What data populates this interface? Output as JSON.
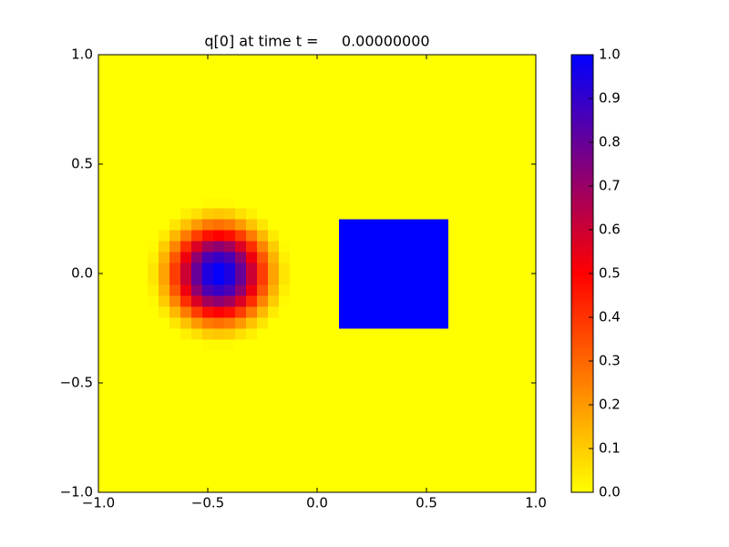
{
  "chart_data": {
    "type": "heatmap",
    "title": "q[0] at time t =     0.00000000",
    "x": [
      -1,
      -0.825,
      -0.775,
      -0.725,
      -0.675,
      -0.625,
      -0.575,
      -0.525,
      -0.475,
      -0.425,
      -0.375,
      -0.325,
      -0.275,
      -0.225,
      -0.175,
      -0.125,
      -0.075,
      0.1,
      0.6,
      1
    ],
    "y": [
      -1,
      -0.35,
      -0.3,
      -0.25,
      -0.2,
      -0.15,
      -0.1,
      -0.05,
      0,
      0.05,
      0.1,
      0.15,
      0.2,
      0.25,
      0.3,
      0.35,
      1
    ],
    "z": [
      [
        0,
        0,
        0,
        0,
        0,
        0,
        0,
        0,
        0,
        0,
        0,
        0,
        0,
        0,
        0,
        0,
        0,
        0,
        0
      ],
      [
        0,
        0,
        0,
        0,
        0,
        0,
        0,
        0.01,
        0.01,
        0.01,
        0,
        0,
        0,
        0,
        0,
        0,
        0,
        0,
        0
      ],
      [
        0,
        0,
        0,
        0,
        0,
        0.03,
        0.06,
        0.1,
        0.11,
        0.1,
        0.06,
        0.03,
        0,
        0,
        0,
        0,
        0,
        0,
        0
      ],
      [
        0,
        0,
        0,
        0,
        0.05,
        0.12,
        0.2,
        0.26,
        0.28,
        0.26,
        0.2,
        0.12,
        0.05,
        0,
        0,
        0,
        0,
        1,
        0
      ],
      [
        0,
        0,
        0,
        0.04,
        0.14,
        0.26,
        0.38,
        0.47,
        0.5,
        0.47,
        0.38,
        0.26,
        0.14,
        0.04,
        0,
        0,
        0,
        1,
        0
      ],
      [
        0,
        0,
        0.01,
        0.1,
        0.24,
        0.41,
        0.57,
        0.68,
        0.72,
        0.68,
        0.57,
        0.41,
        0.24,
        0.1,
        0.01,
        0,
        0,
        1,
        0
      ],
      [
        0,
        0,
        0.03,
        0.15,
        0.33,
        0.53,
        0.72,
        0.85,
        0.89,
        0.85,
        0.72,
        0.53,
        0.33,
        0.15,
        0.03,
        0,
        0,
        1,
        0
      ],
      [
        0,
        0,
        0.05,
        0.18,
        0.38,
        0.6,
        0.8,
        0.94,
        0.99,
        0.94,
        0.8,
        0.6,
        0.38,
        0.18,
        0.05,
        0,
        0,
        1,
        0
      ],
      [
        0,
        0,
        0.05,
        0.18,
        0.38,
        0.6,
        0.8,
        0.94,
        0.99,
        0.94,
        0.8,
        0.6,
        0.38,
        0.18,
        0.05,
        0,
        0,
        1,
        0
      ],
      [
        0,
        0,
        0.03,
        0.15,
        0.33,
        0.53,
        0.72,
        0.85,
        0.89,
        0.85,
        0.72,
        0.53,
        0.33,
        0.15,
        0.03,
        0,
        0,
        1,
        0
      ],
      [
        0,
        0,
        0.01,
        0.1,
        0.24,
        0.41,
        0.57,
        0.68,
        0.72,
        0.68,
        0.57,
        0.41,
        0.24,
        0.1,
        0.01,
        0,
        0,
        1,
        0
      ],
      [
        0,
        0,
        0,
        0.04,
        0.14,
        0.26,
        0.38,
        0.47,
        0.5,
        0.47,
        0.38,
        0.26,
        0.14,
        0.04,
        0,
        0,
        0,
        1,
        0
      ],
      [
        0,
        0,
        0,
        0,
        0.05,
        0.12,
        0.2,
        0.26,
        0.28,
        0.26,
        0.2,
        0.12,
        0.05,
        0,
        0,
        0,
        0,
        1,
        0
      ],
      [
        0,
        0,
        0,
        0,
        0,
        0.03,
        0.06,
        0.1,
        0.11,
        0.1,
        0.06,
        0.03,
        0,
        0,
        0,
        0,
        0,
        0,
        0
      ],
      [
        0,
        0,
        0,
        0,
        0,
        0,
        0,
        0.01,
        0.01,
        0.01,
        0,
        0,
        0,
        0,
        0,
        0,
        0,
        0,
        0
      ],
      [
        0,
        0,
        0,
        0,
        0,
        0,
        0,
        0,
        0,
        0,
        0,
        0,
        0,
        0,
        0,
        0,
        0,
        0,
        0
      ]
    ],
    "colormap": [
      "#ffff00",
      "#ff0000",
      "#0000ff"
    ],
    "zlim": [
      0,
      1
    ],
    "xlim": [
      -1,
      1
    ],
    "ylim": [
      -1,
      1
    ],
    "xticks": [
      {
        "value": -1,
        "label": "−1.0"
      },
      {
        "value": -0.5,
        "label": "−0.5"
      },
      {
        "value": 0,
        "label": "0.0"
      },
      {
        "value": 0.5,
        "label": "0.5"
      },
      {
        "value": 1,
        "label": "1.0"
      }
    ],
    "yticks": [
      {
        "value": -1,
        "label": "−1.0"
      },
      {
        "value": -0.5,
        "label": "−0.5"
      },
      {
        "value": 0,
        "label": "0.0"
      },
      {
        "value": 0.5,
        "label": "0.5"
      },
      {
        "value": 1,
        "label": "1.0"
      }
    ],
    "zticks": [
      {
        "value": 0,
        "label": "0.0"
      },
      {
        "value": 0.1,
        "label": "0.1"
      },
      {
        "value": 0.2,
        "label": "0.2"
      },
      {
        "value": 0.3,
        "label": "0.3"
      },
      {
        "value": 0.4,
        "label": "0.4"
      },
      {
        "value": 0.5,
        "label": "0.5"
      },
      {
        "value": 0.6,
        "label": "0.6"
      },
      {
        "value": 0.7,
        "label": "0.7"
      },
      {
        "value": 0.8,
        "label": "0.8"
      },
      {
        "value": 0.9,
        "label": "0.9"
      },
      {
        "value": 1,
        "label": "1.0"
      }
    ]
  }
}
